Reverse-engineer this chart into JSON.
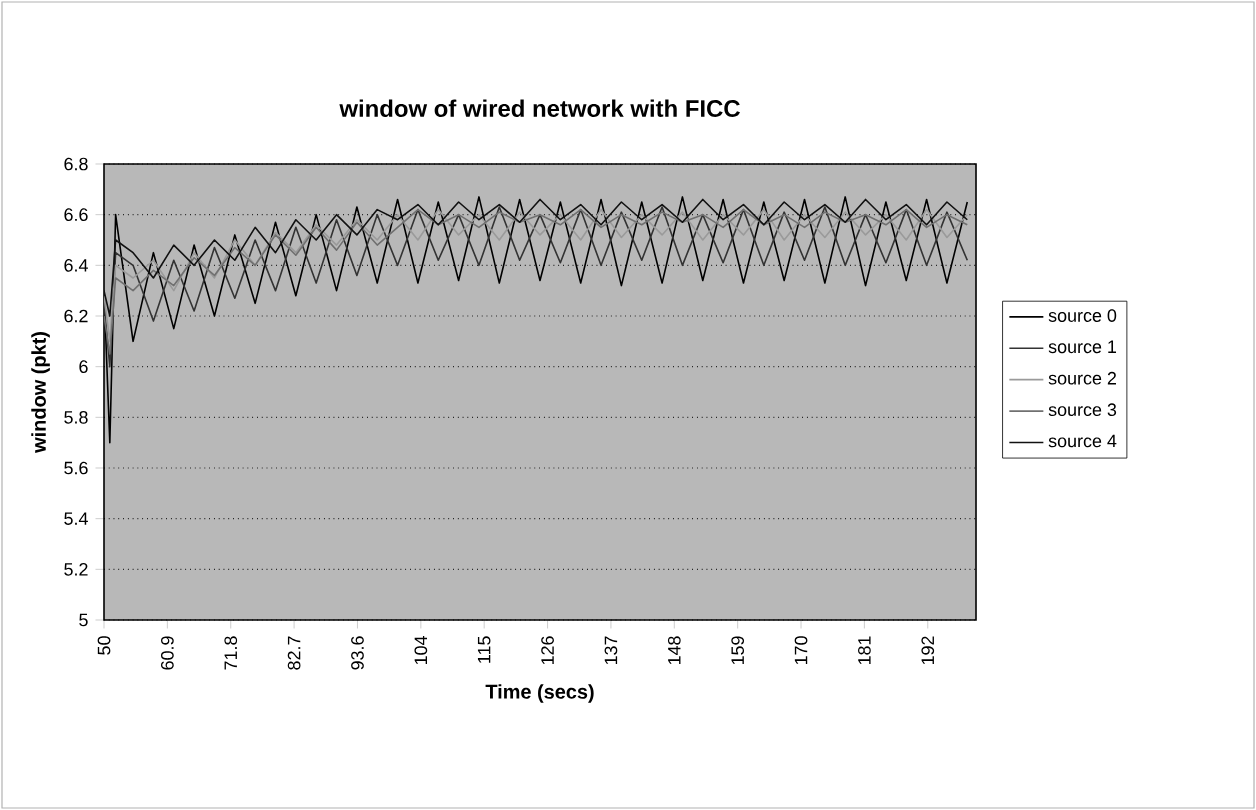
{
  "chart_data": {
    "type": "line",
    "title": "window of wired network with FICC",
    "xlabel": "Time (secs)",
    "ylabel": "window (pkt)",
    "x": [
      50,
      51,
      52,
      55,
      58.5,
      62,
      65.5,
      69,
      72.5,
      76,
      79.5,
      83,
      86.5,
      90,
      93.5,
      97,
      100.5,
      104,
      107.5,
      111,
      114.5,
      118,
      121.5,
      125,
      128.5,
      132,
      135.5,
      139,
      142.5,
      146,
      149.5,
      153,
      156.5,
      160,
      163.5,
      167,
      170.5,
      174,
      177.5,
      181,
      184.5,
      188,
      191.5,
      195,
      198.5
    ],
    "series": [
      {
        "name": "source 0",
        "color": "#000000",
        "values": [
          6.3,
          5.7,
          6.6,
          6.1,
          6.45,
          6.15,
          6.48,
          6.2,
          6.52,
          6.25,
          6.57,
          6.28,
          6.6,
          6.3,
          6.63,
          6.33,
          6.66,
          6.33,
          6.65,
          6.34,
          6.67,
          6.33,
          6.66,
          6.34,
          6.65,
          6.33,
          6.66,
          6.32,
          6.65,
          6.33,
          6.67,
          6.34,
          6.66,
          6.33,
          6.65,
          6.34,
          6.66,
          6.33,
          6.67,
          6.32,
          6.65,
          6.34,
          6.66,
          6.33,
          6.65
        ]
      },
      {
        "name": "source 1",
        "color": "#333333",
        "values": [
          6.25,
          6.0,
          6.45,
          6.4,
          6.18,
          6.42,
          6.22,
          6.47,
          6.27,
          6.5,
          6.3,
          6.55,
          6.33,
          6.58,
          6.36,
          6.6,
          6.4,
          6.62,
          6.42,
          6.6,
          6.4,
          6.63,
          6.42,
          6.6,
          6.41,
          6.62,
          6.4,
          6.61,
          6.42,
          6.63,
          6.4,
          6.6,
          6.41,
          6.62,
          6.4,
          6.61,
          6.42,
          6.63,
          6.4,
          6.6,
          6.41,
          6.62,
          6.4,
          6.61,
          6.42
        ]
      },
      {
        "name": "source 2",
        "color": "#9a9a9a",
        "values": [
          6.28,
          6.1,
          6.4,
          6.35,
          6.42,
          6.3,
          6.45,
          6.35,
          6.5,
          6.4,
          6.53,
          6.45,
          6.56,
          6.48,
          6.58,
          6.5,
          6.6,
          6.5,
          6.62,
          6.52,
          6.6,
          6.5,
          6.61,
          6.52,
          6.6,
          6.5,
          6.62,
          6.51,
          6.6,
          6.52,
          6.61,
          6.5,
          6.6,
          6.52,
          6.62,
          6.5,
          6.6,
          6.51,
          6.61,
          6.52,
          6.6,
          6.5,
          6.62,
          6.51,
          6.6
        ]
      },
      {
        "name": "source 3",
        "color": "#707070",
        "values": [
          6.2,
          6.05,
          6.35,
          6.3,
          6.38,
          6.32,
          6.43,
          6.36,
          6.47,
          6.4,
          6.52,
          6.44,
          6.55,
          6.46,
          6.57,
          6.48,
          6.55,
          6.62,
          6.56,
          6.6,
          6.55,
          6.61,
          6.57,
          6.6,
          6.56,
          6.62,
          6.55,
          6.6,
          6.56,
          6.61,
          6.57,
          6.6,
          6.55,
          6.62,
          6.56,
          6.6,
          6.55,
          6.61,
          6.57,
          6.6,
          6.56,
          6.62,
          6.55,
          6.6,
          6.56
        ]
      },
      {
        "name": "source 4",
        "color": "#111111",
        "values": [
          6.3,
          6.2,
          6.5,
          6.45,
          6.35,
          6.48,
          6.4,
          6.5,
          6.42,
          6.55,
          6.45,
          6.58,
          6.5,
          6.6,
          6.52,
          6.62,
          6.58,
          6.64,
          6.56,
          6.65,
          6.58,
          6.64,
          6.57,
          6.66,
          6.58,
          6.64,
          6.56,
          6.65,
          6.58,
          6.64,
          6.57,
          6.66,
          6.58,
          6.64,
          6.56,
          6.65,
          6.58,
          6.64,
          6.57,
          6.66,
          6.58,
          6.64,
          6.56,
          6.65,
          6.58
        ]
      }
    ],
    "xlim": [
      50,
      200
    ],
    "xticks": [
      50,
      60.9,
      71.8,
      82.7,
      93.6,
      {
        "value": 104.5,
        "label": "104"
      },
      {
        "value": 115.4,
        "label": "115"
      },
      {
        "value": 126.3,
        "label": "126"
      },
      {
        "value": 137.2,
        "label": "137"
      },
      {
        "value": 148.1,
        "label": "148"
      },
      159,
      {
        "value": 169.9,
        "label": "170"
      },
      {
        "value": 180.8,
        "label": "181"
      },
      {
        "value": 191.7,
        "label": "192"
      }
    ],
    "ylim": [
      5,
      6.8
    ],
    "yticks": [
      5,
      5.2,
      5.4,
      5.6,
      5.8,
      6,
      6.2,
      6.4,
      6.6,
      6.8
    ],
    "grid": "y",
    "legend": "right",
    "marker": "none",
    "line_style": "solid"
  }
}
